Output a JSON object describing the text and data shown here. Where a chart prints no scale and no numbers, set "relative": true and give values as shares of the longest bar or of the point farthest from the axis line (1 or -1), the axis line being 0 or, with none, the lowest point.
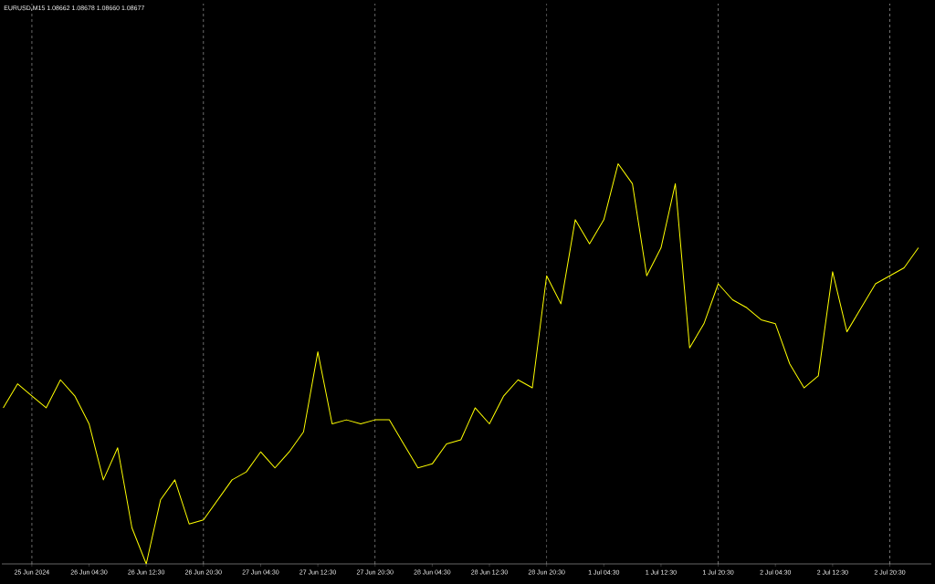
{
  "chart_data": {
    "type": "line",
    "title": "EURUSD,M15  1.08662 1.08678 1.08660 1.08677",
    "relative": true,
    "color": "#ffff00",
    "categories": [
      null,
      null,
      "25 Jun 2024",
      null,
      null,
      null,
      "26 Jun 04:30",
      null,
      null,
      null,
      "26 Jun 12:30",
      null,
      null,
      null,
      "26 Jun 20:30",
      null,
      null,
      null,
      "27 Jun 04:30",
      null,
      null,
      null,
      "27 Jun 12:30",
      null,
      null,
      null,
      "27 Jun 20:30",
      null,
      null,
      null,
      "28 Jun 04:30",
      null,
      null,
      null,
      "28 Jun 12:30",
      null,
      null,
      null,
      "28 Jun 20:30",
      null,
      null,
      null,
      "1 Jul 04:30",
      null,
      null,
      null,
      "1 Jul 12:30",
      null,
      null,
      null,
      "1 Jul 20:30",
      null,
      null,
      null,
      "2 Jul 04:30",
      null,
      null,
      null,
      "2 Jul 12:30",
      null,
      null,
      null,
      "2 Jul 20:30",
      null,
      null
    ],
    "values": [
      0.39,
      0.45,
      0.42,
      0.39,
      0.46,
      0.42,
      0.35,
      0.21,
      0.29,
      0.09,
      0,
      0.16,
      0.21,
      0.1,
      0.11,
      0.16,
      0.21,
      0.23,
      0.28,
      0.24,
      0.28,
      0.33,
      0.53,
      0.35,
      0.36,
      0.35,
      0.36,
      0.36,
      0.3,
      0.24,
      0.25,
      0.3,
      0.31,
      0.39,
      0.35,
      0.42,
      0.46,
      0.44,
      0.72,
      0.65,
      0.86,
      0.8,
      0.86,
      1,
      0.95,
      0.72,
      0.79,
      0.95,
      0.54,
      0.6,
      0.7,
      0.66,
      0.64,
      0.61,
      0.6,
      0.5,
      0.44,
      0.47,
      0.73,
      0.58,
      0.64,
      0.7,
      0.72,
      0.74,
      0.79
    ],
    "ref_lines": [
      {
        "axis": "x",
        "value": "25 Jun 2024",
        "color": "#c0c0c0",
        "line_style": "dashed"
      },
      {
        "axis": "x",
        "value": "26 Jun 20:30",
        "color": "#c0c0c0",
        "line_style": "dashed"
      },
      {
        "axis": "x",
        "value": "27 Jun 20:30",
        "color": "#c0c0c0",
        "line_style": "dashed"
      },
      {
        "axis": "x",
        "value": "28 Jun 20:30",
        "color": "#c0c0c0",
        "line_style": "dashed"
      },
      {
        "axis": "x",
        "value": "1 Jul 20:30",
        "color": "#c0c0c0",
        "line_style": "dashed"
      },
      {
        "axis": "x",
        "value": "2 Jul 20:30",
        "color": "#c0c0c0",
        "line_style": "dashed"
      }
    ]
  }
}
